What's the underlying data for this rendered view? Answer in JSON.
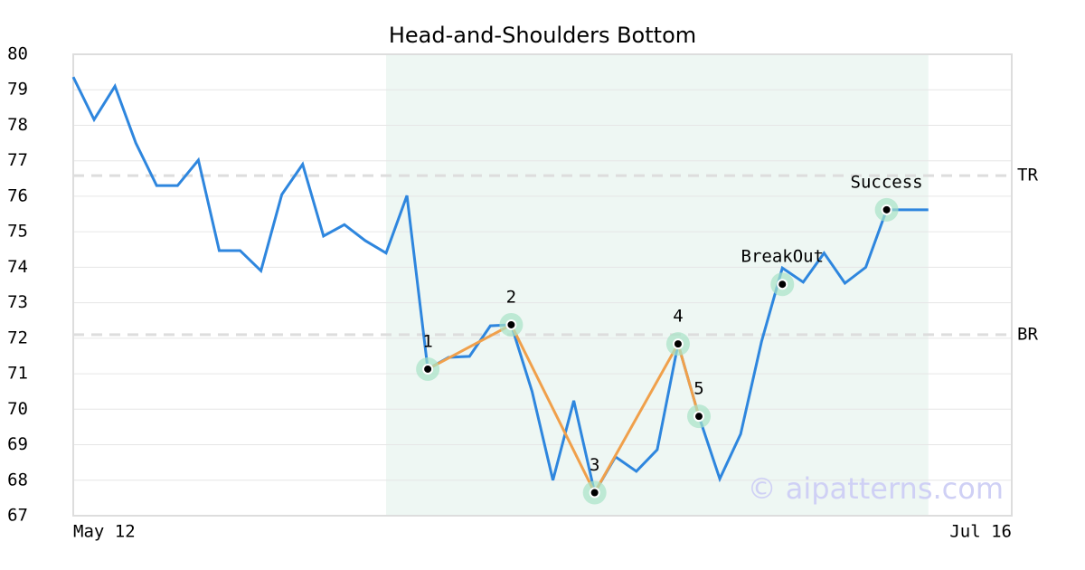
{
  "chart_data": {
    "type": "line",
    "title": "Head-and-Shoulders Bottom",
    "x": [
      0,
      1,
      2,
      3,
      4,
      5,
      6,
      7,
      8,
      9,
      10,
      11,
      12,
      13,
      14,
      15,
      16,
      17,
      18,
      19,
      20,
      21,
      22,
      23,
      24,
      25,
      26,
      27,
      28,
      29,
      30,
      31,
      32,
      33,
      34,
      35,
      36,
      37,
      38,
      39,
      40,
      41
    ],
    "values": [
      79.36,
      78.16,
      79.1,
      77.5,
      76.3,
      76.3,
      77.02,
      74.47,
      74.47,
      73.9,
      76.05,
      76.9,
      74.88,
      75.2,
      74.75,
      74.4,
      76.02,
      71.13,
      71.46,
      71.49,
      72.35,
      72.38,
      70.5,
      68.0,
      70.24,
      67.65,
      68.66,
      68.25,
      68.86,
      71.84,
      69.8,
      68.04,
      69.3,
      71.9,
      73.98,
      73.58,
      74.4,
      73.55,
      74.0,
      75.62,
      75.62,
      75.62
    ],
    "color": "#2e86de",
    "xlim": [
      0,
      45
    ],
    "xticks": [
      {
        "value": 0,
        "label": "May 12"
      },
      {
        "value": 45,
        "label": "Jul 16"
      }
    ],
    "ylim": [
      67,
      80
    ],
    "yticks": [
      67,
      68,
      69,
      70,
      71,
      72,
      73,
      74,
      75,
      76,
      77,
      78,
      79,
      80
    ],
    "grid": true,
    "highlight": {
      "xlim": [
        15,
        41
      ],
      "color": "#eef7f3"
    },
    "pattern": {
      "labels": [
        "1",
        "2",
        "3",
        "4",
        "5"
      ],
      "x": [
        17,
        21,
        25,
        29,
        30
      ],
      "values": [
        71.13,
        72.38,
        67.65,
        71.84,
        69.8
      ],
      "color": "#f0a04b"
    },
    "signals": [
      {
        "label": "BreakOut",
        "x": 34,
        "value": 73.52
      },
      {
        "label": "Success",
        "x": 39,
        "value": 75.62
      }
    ],
    "levels": [
      {
        "label": "TR",
        "value": 76.58
      },
      {
        "label": "BR",
        "value": 72.1
      }
    ],
    "watermark": "© aipatterns.com"
  }
}
